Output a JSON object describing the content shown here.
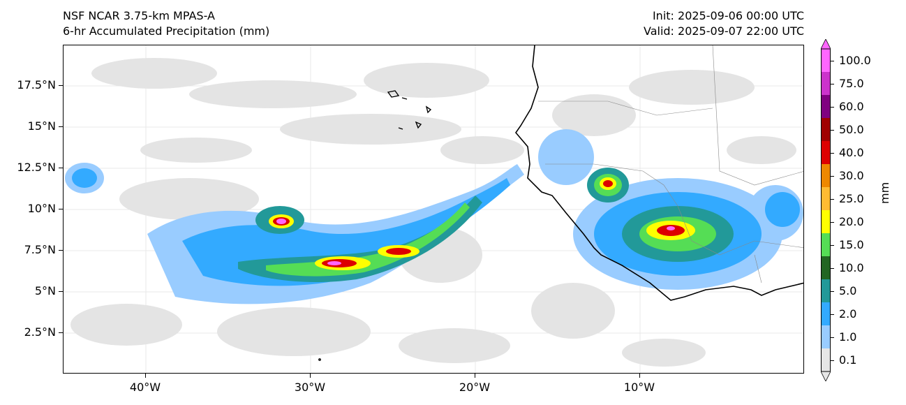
{
  "title": {
    "line1": "NSF NCAR 3.75-km MPAS-A",
    "line2": "6-hr Accumulated Precipitation (mm)",
    "init": "Init: 2025-09-06 00:00 UTC",
    "valid": "Valid: 2025-09-07 22:00 UTC"
  },
  "axes": {
    "y_labels": [
      "17.5°N",
      "15°N",
      "12.5°N",
      "10°N",
      "7.5°N",
      "5°N",
      "2.5°N"
    ],
    "x_labels": [
      "40°W",
      "30°W",
      "20°W",
      "10°W"
    ]
  },
  "colorbar": {
    "unit": "mm",
    "labels": [
      "100.0",
      "75.0",
      "60.0",
      "50.0",
      "40.0",
      "30.0",
      "25.0",
      "20.0",
      "15.0",
      "10.0",
      "5.0",
      "2.0",
      "1.0",
      "0.1"
    ],
    "colors": [
      "#ff66ff",
      "#cc33cc",
      "#800080",
      "#a00000",
      "#dd0000",
      "#ee8800",
      "#ffbb33",
      "#ffff00",
      "#55dd55",
      "#226622",
      "#229999",
      "#33aaff",
      "#99ccff",
      "#e6e6e6"
    ]
  },
  "legend_colors": {
    "land_outline": "#000000",
    "border": "#888888",
    "trace": "#e4e4e4"
  }
}
